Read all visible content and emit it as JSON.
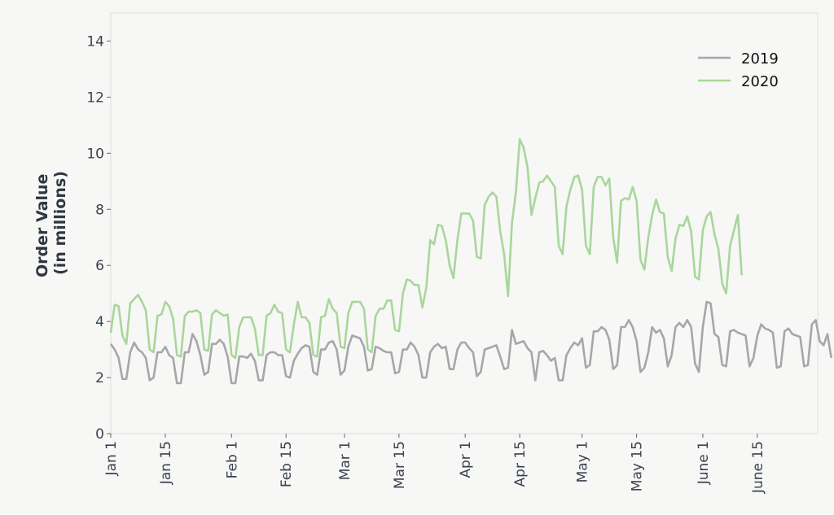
{
  "chart_data": {
    "type": "line",
    "title": "",
    "xlabel": "",
    "ylabel": [
      "Order Value",
      "(in millions)"
    ],
    "ylim": [
      0,
      15
    ],
    "yticks": [
      0,
      2,
      4,
      6,
      8,
      10,
      12,
      14
    ],
    "x_unit": "day of year (0 = Jan 1)",
    "xlim": [
      0,
      181.5
    ],
    "xticks": [
      {
        "day": 0,
        "label": "Jan 1"
      },
      {
        "day": 14,
        "label": "Jan 15"
      },
      {
        "day": 31,
        "label": "Feb 1"
      },
      {
        "day": 45,
        "label": "Feb 15"
      },
      {
        "day": 60,
        "label": "Mar 1"
      },
      {
        "day": 74,
        "label": "Mar 15"
      },
      {
        "day": 91,
        "label": "Apr 1"
      },
      {
        "day": 105,
        "label": "Apr 15"
      },
      {
        "day": 121,
        "label": "May 1"
      },
      {
        "day": 135,
        "label": "May 15"
      },
      {
        "day": 152,
        "label": "June 1"
      },
      {
        "day": 166,
        "label": "June 15"
      }
    ],
    "grid": false,
    "legend_position": "top-right",
    "series": [
      {
        "name": "2019",
        "color": "#a6a6ab",
        "values": [
          3.2,
          3.0,
          2.7,
          1.95,
          1.95,
          2.9,
          3.25,
          3.0,
          2.9,
          2.7,
          1.9,
          2.0,
          2.9,
          2.9,
          3.1,
          2.8,
          2.7,
          1.8,
          1.8,
          2.9,
          2.9,
          3.55,
          3.3,
          2.8,
          2.1,
          2.2,
          3.2,
          3.2,
          3.35,
          3.2,
          2.75,
          1.8,
          1.8,
          2.75,
          2.75,
          2.7,
          2.85,
          2.6,
          1.9,
          1.9,
          2.8,
          2.9,
          2.9,
          2.8,
          2.8,
          2.05,
          2.0,
          2.6,
          2.85,
          3.05,
          3.15,
          3.1,
          2.2,
          2.1,
          3.0,
          3.0,
          3.25,
          3.3,
          3.0,
          2.1,
          2.25,
          3.1,
          3.5,
          3.45,
          3.4,
          3.1,
          2.25,
          2.3,
          3.1,
          3.05,
          2.95,
          2.9,
          2.9,
          2.15,
          2.2,
          3.0,
          3.0,
          3.25,
          3.1,
          2.8,
          2.0,
          2.0,
          2.9,
          3.1,
          3.2,
          3.05,
          3.1,
          2.3,
          2.3,
          3.0,
          3.25,
          3.25,
          3.05,
          2.9,
          2.05,
          2.2,
          3.0,
          3.05,
          3.1,
          3.15,
          2.75,
          2.3,
          2.35,
          3.7,
          3.2,
          3.25,
          3.3,
          3.05,
          2.9,
          1.9,
          2.9,
          2.95,
          2.8,
          2.6,
          2.7,
          1.9,
          1.9,
          2.8,
          3.05,
          3.25,
          3.15,
          3.4,
          2.35,
          2.45,
          3.65,
          3.65,
          3.8,
          3.7,
          3.35,
          2.3,
          2.45,
          3.8,
          3.8,
          4.05,
          3.8,
          3.3,
          2.2,
          2.35,
          2.9,
          3.8,
          3.6,
          3.7,
          3.4,
          2.4,
          2.8,
          3.8,
          3.95,
          3.8,
          4.05,
          3.8,
          2.5,
          2.2,
          3.8,
          4.7,
          4.65,
          3.55,
          3.45,
          2.45,
          2.4,
          3.65,
          3.7,
          3.6,
          3.55,
          3.5,
          2.4,
          2.7,
          3.5,
          3.9,
          3.75,
          3.7,
          3.6,
          2.35,
          2.4,
          3.65,
          3.75,
          3.55,
          3.5,
          3.45,
          2.4,
          2.45,
          3.9,
          4.05,
          3.3,
          3.15,
          3.55,
          2.7
        ]
      },
      {
        "name": "2020",
        "color": "#a9d69b",
        "values": [
          3.6,
          4.6,
          4.55,
          3.5,
          3.2,
          4.65,
          4.8,
          4.95,
          4.7,
          4.4,
          3.0,
          2.9,
          4.2,
          4.25,
          4.7,
          4.55,
          4.1,
          2.8,
          2.75,
          4.2,
          4.35,
          4.35,
          4.4,
          4.3,
          3.0,
          2.95,
          4.25,
          4.4,
          4.3,
          4.2,
          4.25,
          2.8,
          2.7,
          3.8,
          4.15,
          4.15,
          4.15,
          3.75,
          2.8,
          2.8,
          4.2,
          4.3,
          4.6,
          4.35,
          4.3,
          3.0,
          2.9,
          3.9,
          4.7,
          4.15,
          4.15,
          3.95,
          2.8,
          2.75,
          4.15,
          4.2,
          4.8,
          4.45,
          4.3,
          3.1,
          3.05,
          4.3,
          4.7,
          4.7,
          4.7,
          4.45,
          3.0,
          2.9,
          4.2,
          4.45,
          4.45,
          4.75,
          4.75,
          3.7,
          3.65,
          5.0,
          5.5,
          5.45,
          5.3,
          5.3,
          4.5,
          5.2,
          6.9,
          6.75,
          7.45,
          7.4,
          6.9,
          6.0,
          5.55,
          6.9,
          7.85,
          7.85,
          7.85,
          7.6,
          6.3,
          6.25,
          8.15,
          8.45,
          8.6,
          8.45,
          7.2,
          6.4,
          4.9,
          7.5,
          8.6,
          10.5,
          10.2,
          9.5,
          7.8,
          8.4,
          8.95,
          9.0,
          9.2,
          9.0,
          8.8,
          6.7,
          6.4,
          8.1,
          8.7,
          9.15,
          9.2,
          8.7,
          6.7,
          6.4,
          8.8,
          9.15,
          9.15,
          8.85,
          9.1,
          7.0,
          6.1,
          8.3,
          8.4,
          8.35,
          8.8,
          8.3,
          6.2,
          5.85,
          7.0,
          7.8,
          8.35,
          7.9,
          7.85,
          6.3,
          5.8,
          6.95,
          7.45,
          7.4,
          7.75,
          7.2,
          5.6,
          5.5,
          7.25,
          7.75,
          7.9,
          7.1,
          6.6,
          5.35,
          5.0,
          6.7,
          7.25,
          7.8,
          5.65
        ]
      }
    ]
  }
}
